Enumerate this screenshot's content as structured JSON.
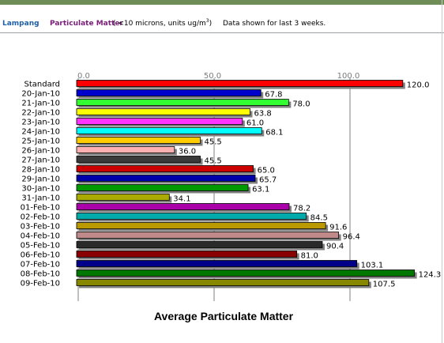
{
  "header": {
    "station": "Lampang",
    "separator": ":",
    "pollutant": "Particulate Matter",
    "units_prefix": "( <10 microns, units ug/m",
    "units_exp": "3",
    "units_suffix": ")",
    "range_note": "Data shown for last 3 weeks."
  },
  "colors": {
    "header_bar": "#6f8e57",
    "station_text": "#1f5fa6",
    "pollutant_text": "#7a1e7a",
    "gridline": "#7f7f7f",
    "shadow": "#808080"
  },
  "chart_data": {
    "type": "bar",
    "orientation": "horizontal",
    "title": "Average Particulate Matter",
    "xlim": [
      0,
      100
    ],
    "x_ticks": [
      "0.0",
      "50.0",
      "100.0"
    ],
    "tick_values": [
      0,
      50,
      100
    ],
    "grid": true,
    "categories": [
      "Standard",
      "20-Jan-10",
      "21-Jan-10",
      "22-Jan-10",
      "23-Jan-10",
      "24-Jan-10",
      "25-Jan-10",
      "26-Jan-10",
      "27-Jan-10",
      "28-Jan-10",
      "29-Jan-10",
      "30-Jan-10",
      "31-Jan-10",
      "01-Feb-10",
      "02-Feb-10",
      "03-Feb-10",
      "04-Feb-10",
      "05-Feb-10",
      "06-Feb-10",
      "07-Feb-10",
      "08-Feb-10",
      "09-Feb-10"
    ],
    "values": [
      120.0,
      67.8,
      78.0,
      63.8,
      61.0,
      68.1,
      45.5,
      36.0,
      45.5,
      65.0,
      65.7,
      63.1,
      34.1,
      78.2,
      84.5,
      91.6,
      96.4,
      90.4,
      81.0,
      103.1,
      124.3,
      107.5
    ],
    "value_labels": [
      "120.0",
      "67.8",
      "78.0",
      "63.8",
      "61.0",
      "68.1",
      "45.5",
      "36.0",
      "45.5",
      "65.0",
      "65.7",
      "63.1",
      "34.1",
      "78.2",
      "84.5",
      "91.6",
      "96.4",
      "90.4",
      "81.0",
      "103.1",
      "124.3",
      "107.5"
    ],
    "bar_colors": [
      "#ff0000",
      "#0000cc",
      "#33ff33",
      "#ffff00",
      "#ff33ff",
      "#00ffff",
      "#ffcc00",
      "#ffb0b0",
      "#3a3a3a",
      "#cc0000",
      "#0000aa",
      "#009900",
      "#aaaa00",
      "#aa00aa",
      "#00aaaa",
      "#bb9900",
      "#c08a8a",
      "#2a2a2a",
      "#880000",
      "#000088",
      "#007700",
      "#888800"
    ]
  }
}
